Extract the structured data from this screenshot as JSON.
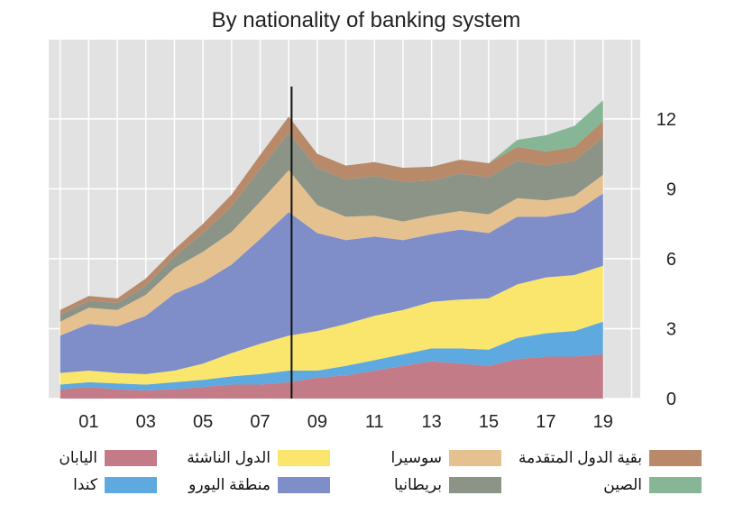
{
  "chart_data": {
    "type": "area",
    "stacked": true,
    "title": "By nationality of banking system",
    "xlabel": "",
    "ylabel": "",
    "x_ticks": [
      "01",
      "03",
      "05",
      "07",
      "09",
      "11",
      "13",
      "15",
      "17",
      "19"
    ],
    "x_tick_values": [
      2001,
      2003,
      2005,
      2007,
      2009,
      2011,
      2013,
      2015,
      2017,
      2019
    ],
    "y_ticks": [
      "0",
      "3",
      "6",
      "9",
      "12"
    ],
    "y_tick_values": [
      0,
      3,
      6,
      9,
      12
    ],
    "xlim": [
      1999.6,
      2020.3
    ],
    "ylim": [
      0,
      15.4
    ],
    "y_axis_side": "right",
    "grid": true,
    "vertical_marker_x": 2008.1,
    "x": [
      2000,
      2001,
      2002,
      2003,
      2004,
      2005,
      2006,
      2007,
      2008,
      2009,
      2010,
      2011,
      2012,
      2013,
      2014,
      2015,
      2016,
      2017,
      2018,
      2019
    ],
    "series": [
      {
        "name": "اليابان",
        "color": "#c47b88",
        "values": [
          0.4,
          0.5,
          0.4,
          0.35,
          0.4,
          0.5,
          0.6,
          0.6,
          0.7,
          0.9,
          1.0,
          1.2,
          1.4,
          1.6,
          1.5,
          1.4,
          1.7,
          1.8,
          1.8,
          1.9
        ]
      },
      {
        "name": "كندا",
        "color": "#5ea9df",
        "values": [
          0.2,
          0.2,
          0.25,
          0.25,
          0.3,
          0.3,
          0.35,
          0.45,
          0.5,
          0.3,
          0.4,
          0.45,
          0.5,
          0.55,
          0.65,
          0.7,
          0.9,
          1.0,
          1.1,
          1.4
        ]
      },
      {
        "name": "الدول الناشئة",
        "color": "#fbe66d",
        "values": [
          0.5,
          0.5,
          0.45,
          0.45,
          0.5,
          0.7,
          1.0,
          1.3,
          1.5,
          1.7,
          1.8,
          1.9,
          1.9,
          2.0,
          2.1,
          2.2,
          2.3,
          2.4,
          2.4,
          2.4
        ]
      },
      {
        "name": "منطقة اليورو",
        "color": "#7f8ec9",
        "values": [
          1.6,
          2.0,
          2.0,
          2.5,
          3.3,
          3.5,
          3.8,
          4.5,
          5.3,
          4.2,
          3.6,
          3.4,
          3.0,
          2.9,
          3.0,
          2.8,
          2.9,
          2.6,
          2.7,
          3.1
        ]
      },
      {
        "name": "سوسيرا",
        "color": "#e6c190",
        "values": [
          0.6,
          0.7,
          0.7,
          0.9,
          1.1,
          1.3,
          1.4,
          1.6,
          1.8,
          1.2,
          1.0,
          0.9,
          0.8,
          0.8,
          0.8,
          0.8,
          0.8,
          0.7,
          0.7,
          0.8
        ]
      },
      {
        "name": "بريطانيا",
        "color": "#8c9488",
        "values": [
          0.3,
          0.3,
          0.3,
          0.4,
          0.5,
          0.8,
          1.1,
          1.4,
          1.6,
          1.6,
          1.6,
          1.7,
          1.7,
          1.5,
          1.6,
          1.6,
          1.6,
          1.5,
          1.5,
          1.6
        ]
      },
      {
        "name": "بقية الدول المتقدمة",
        "color": "#b88a6a",
        "values": [
          0.2,
          0.2,
          0.2,
          0.3,
          0.3,
          0.4,
          0.5,
          0.6,
          0.7,
          0.6,
          0.6,
          0.6,
          0.6,
          0.6,
          0.6,
          0.6,
          0.6,
          0.6,
          0.6,
          0.7
        ]
      },
      {
        "name": "الصين",
        "color": "#86b696",
        "values": [
          0,
          0,
          0,
          0,
          0,
          0,
          0,
          0,
          0,
          0,
          0,
          0,
          0,
          0,
          0,
          0,
          0.3,
          0.7,
          0.9,
          0.9
        ]
      }
    ]
  }
}
